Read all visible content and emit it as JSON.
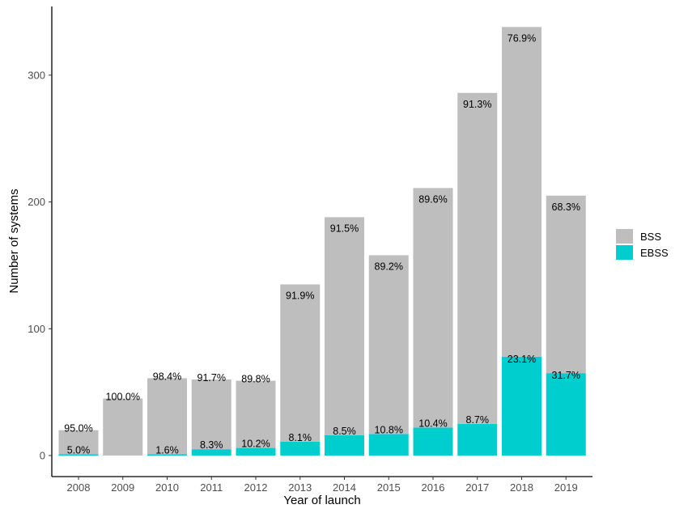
{
  "chart_data": {
    "type": "bar",
    "stacked": true,
    "xlabel": "Year of launch",
    "ylabel": "Number of systems",
    "ylim": [
      0,
      345
    ],
    "yticks": [
      0,
      100,
      200,
      300
    ],
    "grid": false,
    "legend_position": "right",
    "categories": [
      "2008",
      "2009",
      "2010",
      "2011",
      "2012",
      "2013",
      "2014",
      "2015",
      "2016",
      "2017",
      "2018",
      "2019"
    ],
    "series": [
      {
        "name": "EBSS",
        "color": "#00CDCD",
        "values": [
          1,
          0,
          1,
          5,
          6,
          11,
          16,
          17,
          22,
          25,
          78,
          65
        ],
        "labels": [
          "5.0%",
          "",
          "1.6%",
          "8.3%",
          "10.2%",
          "8.1%",
          "8.5%",
          "10.8%",
          "10.4%",
          "8.7%",
          "23.1%",
          "31.7%"
        ]
      },
      {
        "name": "BSS",
        "color": "#BEBEBE",
        "values": [
          19,
          45,
          60,
          55,
          53,
          124,
          172,
          141,
          189,
          261,
          260,
          140
        ],
        "labels": [
          "95.0%",
          "100.0%",
          "98.4%",
          "91.7%",
          "89.8%",
          "91.9%",
          "91.5%",
          "89.2%",
          "89.6%",
          "91.3%",
          "76.9%",
          "68.3%"
        ]
      }
    ],
    "legend_order": [
      "BSS",
      "EBSS"
    ]
  }
}
